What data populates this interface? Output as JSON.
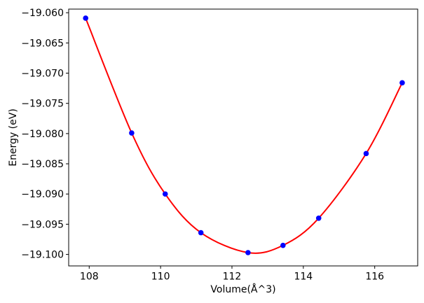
{
  "figure": {
    "background": "#ffffff",
    "axis_color": "#000000",
    "tick_label_color": "#000000"
  },
  "chart_data": {
    "type": "scatter",
    "title": "",
    "xlabel": "Volume(Å^3)",
    "ylabel": "Energy (eV)",
    "grid": false,
    "legend": false,
    "xlim": [
      107.425,
      117.204
    ],
    "ylim": [
      -19.1019,
      -19.0594
    ],
    "x_ticks": [
      108,
      110,
      112,
      114,
      116
    ],
    "x_tick_labels": [
      "108",
      "110",
      "112",
      "114",
      "116"
    ],
    "y_ticks": [
      -19.06,
      -19.065,
      -19.07,
      -19.075,
      -19.08,
      -19.085,
      -19.09,
      -19.095,
      -19.1
    ],
    "y_tick_labels": [
      "−19.060",
      "−19.065",
      "−19.070",
      "−19.075",
      "−19.080",
      "−19.085",
      "−19.090",
      "−19.095",
      "−19.100"
    ],
    "series": [
      {
        "name": "fit-curve",
        "type": "line",
        "smooth": true,
        "color": "#ff0000",
        "line_width": 2,
        "x": [
          107.9,
          109.19,
          110.13,
          111.13,
          112.45,
          113.43,
          114.43,
          115.76,
          116.77
        ],
        "y": [
          -19.0609,
          -19.0799,
          -19.09,
          -19.0964,
          -19.0997,
          -19.0985,
          -19.094,
          -19.0833,
          -19.0716
        ]
      },
      {
        "name": "energy-volume-data-points",
        "type": "scatter",
        "marker": "circle",
        "marker_radius": 3.8,
        "color": "#0000ff",
        "x": [
          107.9,
          109.19,
          110.13,
          111.13,
          112.45,
          113.43,
          114.43,
          115.76,
          116.77
        ],
        "y": [
          -19.0609,
          -19.0799,
          -19.09,
          -19.0964,
          -19.0997,
          -19.0985,
          -19.094,
          -19.0833,
          -19.0716
        ]
      }
    ]
  }
}
